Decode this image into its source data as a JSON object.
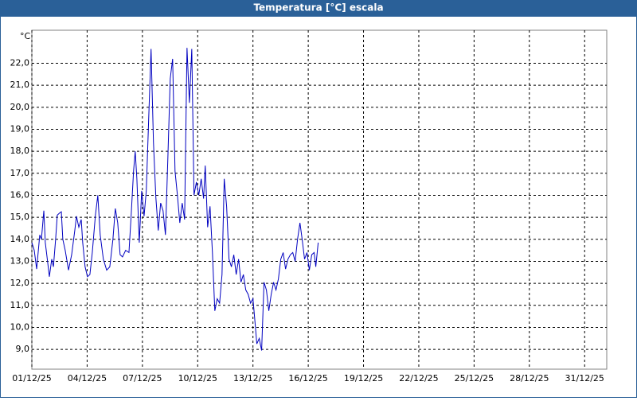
{
  "chart_data": {
    "type": "line",
    "title": "Temperatura [°C] escala",
    "y_label": "°C",
    "x": [
      0,
      0.13,
      0.26,
      0.43,
      0.52,
      0.65,
      0.73,
      0.86,
      0.95,
      1.08,
      1.17,
      1.29,
      1.38,
      1.51,
      1.6,
      1.68,
      1.81,
      1.99,
      2.16,
      2.33,
      2.42,
      2.55,
      2.68,
      2.76,
      2.89,
      3.02,
      3.15,
      3.28,
      3.45,
      3.58,
      3.71,
      3.88,
      4.06,
      4.23,
      4.4,
      4.53,
      4.66,
      4.79,
      4.92,
      5.09,
      5.27,
      5.39,
      5.52,
      5.61,
      5.7,
      5.83,
      5.96,
      6.09,
      6.21,
      6.34,
      6.47,
      6.6,
      6.73,
      6.86,
      6.99,
      7.12,
      7.25,
      7.38,
      7.51,
      7.64,
      7.77,
      7.9,
      8.03,
      8.16,
      8.29,
      8.42,
      8.55,
      8.68,
      8.8,
      8.93,
      9.06,
      9.19,
      9.32,
      9.41,
      9.54,
      9.67,
      9.8,
      9.93,
      10.06,
      10.19,
      10.32,
      10.44,
      10.57,
      10.7,
      10.83,
      10.96,
      11.09,
      11.22,
      11.35,
      11.48,
      11.61,
      11.74,
      11.87,
      12.0,
      12.13,
      12.21,
      12.34,
      12.47,
      12.6,
      12.73,
      12.86,
      12.99,
      13.12,
      13.25,
      13.38,
      13.51,
      13.64,
      13.77,
      13.9,
      14.03,
      14.16,
      14.29,
      14.42,
      14.55,
      14.67,
      14.8,
      14.93,
      15.06,
      15.19,
      15.32,
      15.41,
      15.54
    ],
    "series": [
      {
        "name": "Temperatura",
        "color": "#0000c0",
        "values": [
          13.85,
          13.5,
          12.65,
          14.2,
          14.0,
          15.3,
          13.85,
          12.95,
          12.3,
          13.1,
          12.75,
          14.0,
          15.1,
          15.2,
          15.25,
          14.0,
          13.5,
          12.6,
          13.3,
          14.4,
          15.05,
          14.55,
          14.9,
          13.85,
          12.75,
          12.3,
          12.4,
          13.4,
          15.1,
          16.0,
          14.2,
          13.1,
          12.6,
          12.75,
          14.0,
          15.4,
          14.75,
          13.3,
          13.2,
          13.5,
          13.4,
          15.1,
          17.1,
          18.0,
          16.75,
          13.85,
          16.2,
          15.05,
          16.2,
          19.45,
          22.65,
          18.4,
          15.9,
          14.4,
          15.65,
          15.3,
          14.2,
          17.65,
          21.3,
          22.2,
          17.1,
          16.0,
          14.75,
          15.65,
          14.9,
          22.7,
          20.2,
          22.65,
          16.0,
          16.6,
          16.0,
          16.75,
          15.85,
          17.35,
          14.55,
          15.5,
          13.4,
          10.75,
          11.3,
          11.1,
          12.4,
          16.75,
          15.5,
          13.1,
          12.75,
          13.3,
          12.4,
          13.1,
          12.05,
          12.4,
          11.7,
          11.5,
          11.1,
          11.3,
          10.05,
          9.25,
          9.5,
          8.95,
          12.05,
          11.7,
          10.75,
          11.5,
          12.05,
          11.7,
          12.2,
          13.1,
          13.4,
          12.65,
          13.1,
          13.3,
          13.4,
          13.0,
          14.0,
          14.75,
          14.0,
          13.1,
          13.4,
          12.6,
          13.3,
          13.4,
          12.75,
          13.85
        ]
      }
    ],
    "xlim": [
      0,
      31.2
    ],
    "xticks": [
      {
        "value": 0,
        "label": "01/12/25"
      },
      {
        "value": 3,
        "label": "04/12/25"
      },
      {
        "value": 6,
        "label": "07/12/25"
      },
      {
        "value": 9,
        "label": "10/12/25"
      },
      {
        "value": 12,
        "label": "13/12/25"
      },
      {
        "value": 15,
        "label": "16/12/25"
      },
      {
        "value": 18,
        "label": "19/12/25"
      },
      {
        "value": 21,
        "label": "22/12/25"
      },
      {
        "value": 24,
        "label": "25/12/25"
      },
      {
        "value": 27,
        "label": "28/12/25"
      },
      {
        "value": 30,
        "label": "31/12/25"
      }
    ],
    "ylim": [
      8.1,
      23.5
    ],
    "yticks": [
      {
        "value": 9,
        "label": "9,0"
      },
      {
        "value": 10,
        "label": "10,0"
      },
      {
        "value": 11,
        "label": "11,0"
      },
      {
        "value": 12,
        "label": "12,0"
      },
      {
        "value": 13,
        "label": "13,0"
      },
      {
        "value": 14,
        "label": "14,0"
      },
      {
        "value": 15,
        "label": "15,0"
      },
      {
        "value": 16,
        "label": "16,0"
      },
      {
        "value": 17,
        "label": "17,0"
      },
      {
        "value": 18,
        "label": "18,0"
      },
      {
        "value": 19,
        "label": "19,0"
      },
      {
        "value": 20,
        "label": "20,0"
      },
      {
        "value": 21,
        "label": "21,0"
      },
      {
        "value": 22,
        "label": "22,0"
      }
    ],
    "grid": true
  }
}
